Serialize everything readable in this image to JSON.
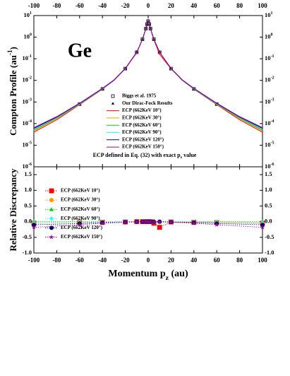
{
  "chart_data": [
    {
      "type": "line",
      "label": "Ge",
      "y_label": {
        "text": "Compton Profile (au",
        "sup": "-1",
        "tail": ")"
      },
      "annotation": {
        "text": "ECP defined in Eq. (32) with exact p",
        "sub": "z",
        "tail": " value"
      },
      "log_y": true,
      "xlim": [
        -100,
        100
      ],
      "xticks": [
        -100,
        -80,
        -60,
        -40,
        -20,
        0,
        20,
        40,
        60,
        80,
        100
      ],
      "ylim": [
        1e-06,
        10
      ],
      "yticks": [
        {
          "value": 10,
          "label": "10",
          "exponent": "1"
        },
        {
          "value": 1,
          "label": "10",
          "exponent": "0"
        },
        {
          "value": 0.1,
          "label": "10",
          "exponent": "-1"
        },
        {
          "value": 0.01,
          "label": "10",
          "exponent": "-2"
        },
        {
          "value": 0.001,
          "label": "10",
          "exponent": "-3"
        },
        {
          "value": 0.0001,
          "label": "10",
          "exponent": "-4"
        },
        {
          "value": 1e-05,
          "label": "10",
          "exponent": "-5"
        },
        {
          "value": 1e-06,
          "label": "10",
          "exponent": "-6"
        }
      ],
      "series": [
        {
          "name": "Biggs et al. 1975",
          "color": "#000000",
          "marker": "square-open",
          "x": [
            -60,
            -40,
            -20,
            -10,
            -5,
            -2,
            -1,
            0,
            1,
            2,
            5,
            10,
            20,
            40,
            60
          ],
          "values": [
            0.0008,
            0.004,
            0.035,
            0.2,
            0.8,
            2.5,
            4,
            5.5,
            4,
            2.5,
            0.8,
            0.2,
            0.035,
            0.004,
            0.0008
          ]
        },
        {
          "name": "Our Dirac-Fock Results",
          "color": "#000000",
          "marker": "triangle",
          "x": [
            -60,
            -40,
            -20,
            -10,
            -5,
            -2,
            -1,
            0,
            1,
            2,
            5,
            10,
            20,
            40,
            60
          ],
          "values": [
            0.00082,
            0.0041,
            0.036,
            0.21,
            0.82,
            2.6,
            4.1,
            5.7,
            4.1,
            2.6,
            0.82,
            0.21,
            0.036,
            0.0041,
            0.00082
          ]
        },
        {
          "name": "ECP (662KeV 10°)",
          "color": "#ff0000",
          "x": [
            -100,
            -80,
            -60,
            -40,
            -30,
            -20,
            -10,
            -5,
            -2,
            0,
            2,
            5,
            10,
            20,
            30,
            40,
            60,
            80,
            100
          ],
          "values": [
            4e-05,
            0.00015,
            0.00075,
            0.0039,
            0.0098,
            0.034,
            0.19,
            0.78,
            2.4,
            6,
            2.4,
            0.75,
            0.16,
            0.034,
            0.0098,
            0.0039,
            0.00075,
            0.00015,
            4e-05
          ]
        },
        {
          "name": "ECP (662KeV 30°)",
          "color": "#ff9900",
          "x": [
            -100,
            -80,
            -60,
            -40,
            -30,
            -20,
            -10,
            -5,
            -2,
            0,
            2,
            5,
            10,
            20,
            30,
            40,
            60,
            80,
            100
          ],
          "values": [
            4.5e-05,
            0.00017,
            0.00078,
            0.004,
            0.01,
            0.035,
            0.2,
            0.8,
            2.5,
            6,
            2.5,
            0.8,
            0.2,
            0.035,
            0.01,
            0.004,
            0.00078,
            0.00017,
            4.5e-05
          ]
        },
        {
          "name": "ECP (662KeV 60°)",
          "color": "#00cc00",
          "x": [
            -100,
            -80,
            -60,
            -40,
            -30,
            -20,
            -10,
            -5,
            -2,
            0,
            2,
            5,
            10,
            20,
            30,
            40,
            60,
            80,
            100
          ],
          "values": [
            5e-05,
            0.00018,
            0.0008,
            0.004,
            0.01,
            0.035,
            0.2,
            0.8,
            2.5,
            6,
            2.5,
            0.8,
            0.2,
            0.035,
            0.01,
            0.004,
            0.0008,
            0.00018,
            5e-05
          ]
        },
        {
          "name": "ECP (662KeV 90°)",
          "color": "#33ffff",
          "x": [
            -100,
            -80,
            -60,
            -40,
            -30,
            -20,
            -10,
            -5,
            -2,
            0,
            2,
            5,
            10,
            20,
            30,
            40,
            60,
            80,
            100
          ],
          "values": [
            5.5e-05,
            0.00019,
            0.00082,
            0.0041,
            0.01,
            0.035,
            0.2,
            0.8,
            2.5,
            6,
            2.5,
            0.8,
            0.2,
            0.035,
            0.01,
            0.0041,
            0.00082,
            0.00019,
            5.5e-05
          ]
        },
        {
          "name": "ECP (662KeV 120°)",
          "color": "#000099",
          "x": [
            -100,
            -80,
            -60,
            -40,
            -30,
            -20,
            -10,
            -5,
            -2,
            0,
            2,
            5,
            10,
            20,
            30,
            40,
            60,
            80,
            100
          ],
          "values": [
            6e-05,
            0.0002,
            0.00085,
            0.0042,
            0.0102,
            0.0355,
            0.2,
            0.8,
            2.5,
            6,
            2.5,
            0.8,
            0.2,
            0.0355,
            0.0102,
            0.0042,
            0.00085,
            0.0002,
            6e-05
          ]
        },
        {
          "name": "ECP (662KeV 150°)",
          "color": "#990099",
          "x": [
            -100,
            -80,
            -60,
            -40,
            -30,
            -20,
            -10,
            -5,
            -2,
            0,
            2,
            5,
            10,
            20,
            30,
            40,
            60,
            80,
            100
          ],
          "values": [
            6.5e-05,
            0.00021,
            0.00088,
            0.0043,
            0.0104,
            0.036,
            0.2,
            0.8,
            2.5,
            6,
            2.5,
            0.8,
            0.2,
            0.036,
            0.0104,
            0.0043,
            0.00088,
            0.00021,
            6.5e-05
          ]
        }
      ]
    },
    {
      "type": "line",
      "y_label": {
        "text": "Relative Discrepancy"
      },
      "x_label": {
        "text": "Momentum p",
        "sub": "z",
        "tail": " (au)"
      },
      "log_y": false,
      "xlim": [
        -100,
        100
      ],
      "xticks": [
        -100,
        -80,
        -60,
        -40,
        -20,
        0,
        20,
        40,
        60,
        80,
        100
      ],
      "ylim": [
        -1,
        1.75
      ],
      "yticks": [
        1.5,
        {
          "value": 1,
          "label": "1.0"
        },
        0.5,
        {
          "value": 0,
          "label": "0.0"
        },
        -0.5,
        {
          "value": -1,
          "label": "-1.0"
        }
      ],
      "series": [
        {
          "name": "ECP (662KeV 10°)",
          "color": "#ff0000",
          "marker": "square",
          "x": [
            -100,
            -60,
            -40,
            -20,
            -10,
            -5,
            -2,
            0,
            2,
            5,
            10,
            20,
            40,
            60,
            100
          ],
          "values": [
            -0.05,
            -0.03,
            -0.02,
            -0.01,
            0,
            0,
            0,
            0,
            0,
            -0.05,
            -0.18,
            -0.01,
            -0.02,
            -0.03,
            -0.05
          ]
        },
        {
          "name": "ECP (662KeV 30°)",
          "color": "#ff9900",
          "marker": "circle",
          "x": [
            -100,
            -60,
            -40,
            -20,
            -10,
            -5,
            -2,
            0,
            2,
            5,
            10,
            20,
            40,
            60,
            100
          ],
          "values": [
            -0.04,
            -0.02,
            -0.01,
            0,
            0,
            0,
            0,
            0,
            0,
            0,
            0,
            0,
            -0.01,
            -0.02,
            -0.04
          ]
        },
        {
          "name": "ECP (662KeV 60°)",
          "color": "#00cc00",
          "marker": "triangle",
          "x": [
            -100,
            -60,
            -40,
            -20,
            -10,
            -5,
            -2,
            0,
            2,
            5,
            10,
            20,
            40,
            60,
            100
          ],
          "values": [
            0,
            0,
            0,
            0,
            0,
            0,
            0,
            0,
            0,
            0,
            0,
            0,
            0,
            0,
            0
          ]
        },
        {
          "name": "ECP (662KeV 90°)",
          "color": "#33ffff",
          "marker": "diamond",
          "x": [
            -100,
            -60,
            -40,
            -20,
            -10,
            -5,
            -2,
            0,
            2,
            5,
            10,
            20,
            40,
            60,
            100
          ],
          "values": [
            -0.05,
            -0.03,
            -0.01,
            0,
            0,
            0,
            0,
            0,
            0,
            0,
            0,
            0,
            -0.01,
            -0.03,
            -0.05
          ]
        },
        {
          "name": "ECP (662KeV 120°)",
          "color": "#000066",
          "marker": "circle",
          "x": [
            -100,
            -60,
            -40,
            -20,
            -10,
            -5,
            -2,
            0,
            2,
            5,
            10,
            20,
            40,
            60,
            100
          ],
          "values": [
            -0.1,
            -0.06,
            -0.03,
            -0.01,
            0,
            0,
            0,
            0,
            0,
            0,
            0,
            -0.01,
            -0.03,
            -0.06,
            -0.1
          ]
        },
        {
          "name": "ECP (662KeV 150°)",
          "color": "#990099",
          "marker": "star",
          "x": [
            -100,
            -60,
            -40,
            -20,
            -10,
            -5,
            -2,
            0,
            2,
            5,
            10,
            20,
            40,
            60,
            100
          ],
          "values": [
            -0.18,
            -0.1,
            -0.05,
            -0.02,
            -0.01,
            0,
            0,
            0,
            0,
            0,
            -0.01,
            -0.02,
            -0.05,
            -0.1,
            -0.18
          ]
        }
      ]
    }
  ]
}
